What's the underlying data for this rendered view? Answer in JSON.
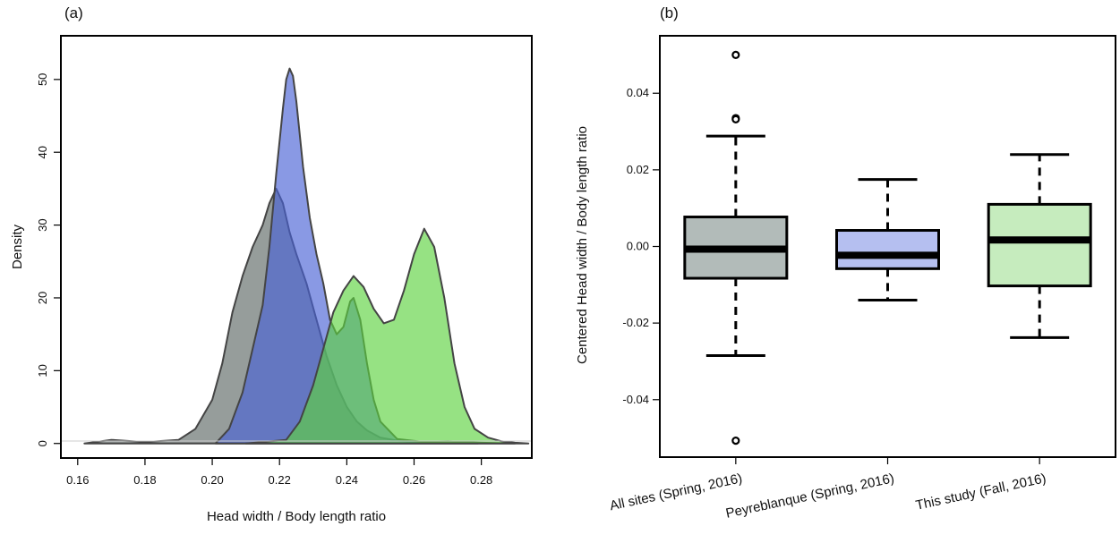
{
  "colors": {
    "gray": "#5d6965",
    "blue": "#4a63d6",
    "green": "#5ed241",
    "gray_box": "#b2bbb9",
    "blue_box": "#b5bff0",
    "green_box": "#c6ecbe",
    "outline": "#555555"
  },
  "chart_data": [
    {
      "panel": "(a)",
      "type": "area",
      "xlabel": "Head width / Body length ratio",
      "ylabel": "Density",
      "xlim": [
        0.155,
        0.295
      ],
      "ylim": [
        -2,
        56
      ],
      "x_ticks": [
        "0.16",
        "0.18",
        "0.20",
        "0.22",
        "0.24",
        "0.26",
        "0.28"
      ],
      "x_tick_values": [
        0.16,
        0.18,
        0.2,
        0.22,
        0.24,
        0.26,
        0.28
      ],
      "y_ticks": [
        "0",
        "10",
        "20",
        "30",
        "40",
        "50"
      ],
      "y_tick_values": [
        0,
        10,
        20,
        30,
        40,
        50
      ],
      "grid": false,
      "legend": "none",
      "series": [
        {
          "color": "gray",
          "x": [
            0.162,
            0.17,
            0.18,
            0.19,
            0.195,
            0.2,
            0.203,
            0.206,
            0.209,
            0.212,
            0.215,
            0.217,
            0.219,
            0.221,
            0.223,
            0.225,
            0.228,
            0.231,
            0.234,
            0.237,
            0.24,
            0.243,
            0.246,
            0.25,
            0.255,
            0.26,
            0.27,
            0.28,
            0.29
          ],
          "y": [
            0,
            0.5,
            0.2,
            0.5,
            2,
            6,
            11,
            18,
            23,
            27,
            30,
            33,
            35,
            33,
            29,
            26,
            22,
            17,
            12,
            8,
            5,
            3,
            1.8,
            0.8,
            0.4,
            0.2,
            0.3,
            0.1,
            0
          ]
        },
        {
          "color": "blue",
          "x": [
            0.201,
            0.205,
            0.209,
            0.212,
            0.215,
            0.217,
            0.219,
            0.221,
            0.222,
            0.223,
            0.224,
            0.225,
            0.227,
            0.229,
            0.231,
            0.233,
            0.235,
            0.237,
            0.239,
            0.241,
            0.242,
            0.244,
            0.246,
            0.248,
            0.25,
            0.255,
            0.265,
            0.279
          ],
          "y": [
            0,
            2,
            7,
            13,
            19,
            27,
            37,
            46,
            50,
            51.5,
            50.5,
            47,
            38,
            31,
            26,
            22,
            17,
            15,
            16,
            19.5,
            20,
            17,
            11,
            6,
            3,
            0.6,
            0.1,
            0
          ]
        },
        {
          "color": "green",
          "x": [
            0.21,
            0.222,
            0.226,
            0.23,
            0.233,
            0.236,
            0.239,
            0.242,
            0.245,
            0.248,
            0.251,
            0.254,
            0.257,
            0.26,
            0.263,
            0.266,
            0.269,
            0.272,
            0.275,
            0.278,
            0.282,
            0.286,
            0.29,
            0.294
          ],
          "y": [
            0,
            0.5,
            3,
            8,
            13,
            18,
            21,
            23,
            21.5,
            18.5,
            16.5,
            17,
            21,
            26,
            29.5,
            27,
            20,
            11,
            5,
            2,
            0.8,
            0.3,
            0.1,
            0
          ]
        }
      ]
    },
    {
      "panel": "(b)",
      "type": "box",
      "ylabel": "Centered Head width / Body length ratio",
      "ylim": [
        -0.055,
        0.055
      ],
      "y_ticks": [
        "-0.04",
        "-0.02",
        "0.00",
        "0.02",
        "0.04"
      ],
      "y_tick_values": [
        -0.04,
        -0.02,
        0.0,
        0.02,
        0.04
      ],
      "categories": [
        "All sites (Spring, 2016)",
        "Peyreblanque (Spring, 2016)",
        "This study (Fall, 2016)"
      ],
      "boxes": [
        {
          "color": "gray_box",
          "whisker_low": -0.0285,
          "q1": -0.0083,
          "median": -0.0007,
          "q3": 0.0077,
          "whisker_high": 0.0288,
          "outliers": [
            0.05,
            0.0335,
            0.0332,
            -0.0507
          ]
        },
        {
          "color": "blue_box",
          "whisker_low": -0.014,
          "q1": -0.0058,
          "median": -0.0023,
          "q3": 0.0042,
          "whisker_high": 0.0175,
          "outliers": []
        },
        {
          "color": "green_box",
          "whisker_low": -0.0238,
          "q1": -0.0103,
          "median": 0.0017,
          "q3": 0.011,
          "whisker_high": 0.024,
          "outliers": []
        }
      ]
    }
  ]
}
